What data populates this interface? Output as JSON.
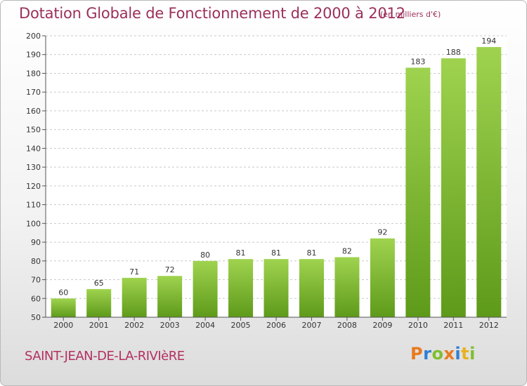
{
  "header": {
    "title": "Dotation Globale de Fonctionnement de 2000 à 2012",
    "subtitle": "(en milliers d'€)"
  },
  "footer": {
    "commune": "SAINT-JEAN-DE-LA-RIVIèRE",
    "logo": {
      "letters": [
        "P",
        "r",
        "o",
        "x",
        "i",
        "t",
        "i"
      ],
      "colors": [
        "#e87a1e",
        "#2f7fd1",
        "#7fbf2f",
        "#e87a1e",
        "#2f7fd1",
        "#e8b21e",
        "#7fbf2f"
      ]
    }
  },
  "chart_data": {
    "type": "bar",
    "categories": [
      "2000",
      "2001",
      "2002",
      "2003",
      "2004",
      "2005",
      "2006",
      "2007",
      "2008",
      "2009",
      "2010",
      "2011",
      "2012"
    ],
    "values": [
      60,
      65,
      71,
      72,
      80,
      81,
      81,
      81,
      82,
      92,
      183,
      188,
      194
    ],
    "data_labels": [
      "60",
      "65",
      "71",
      "72",
      "80",
      "81",
      "81",
      "81",
      "82",
      "92",
      "183",
      "188",
      "194"
    ],
    "title": "Dotation Globale de Fonctionnement de 2000 à 2012",
    "ylim": [
      50,
      200
    ],
    "yticks": [
      50,
      60,
      70,
      80,
      90,
      100,
      110,
      120,
      130,
      140,
      150,
      160,
      170,
      180,
      190,
      200
    ],
    "grid": true,
    "colors": {
      "bar_light": "#9fd34f",
      "bar_dark": "#5e9a1a",
      "grid": "#c9c9c9",
      "plot_bg": "#ffffff"
    }
  }
}
